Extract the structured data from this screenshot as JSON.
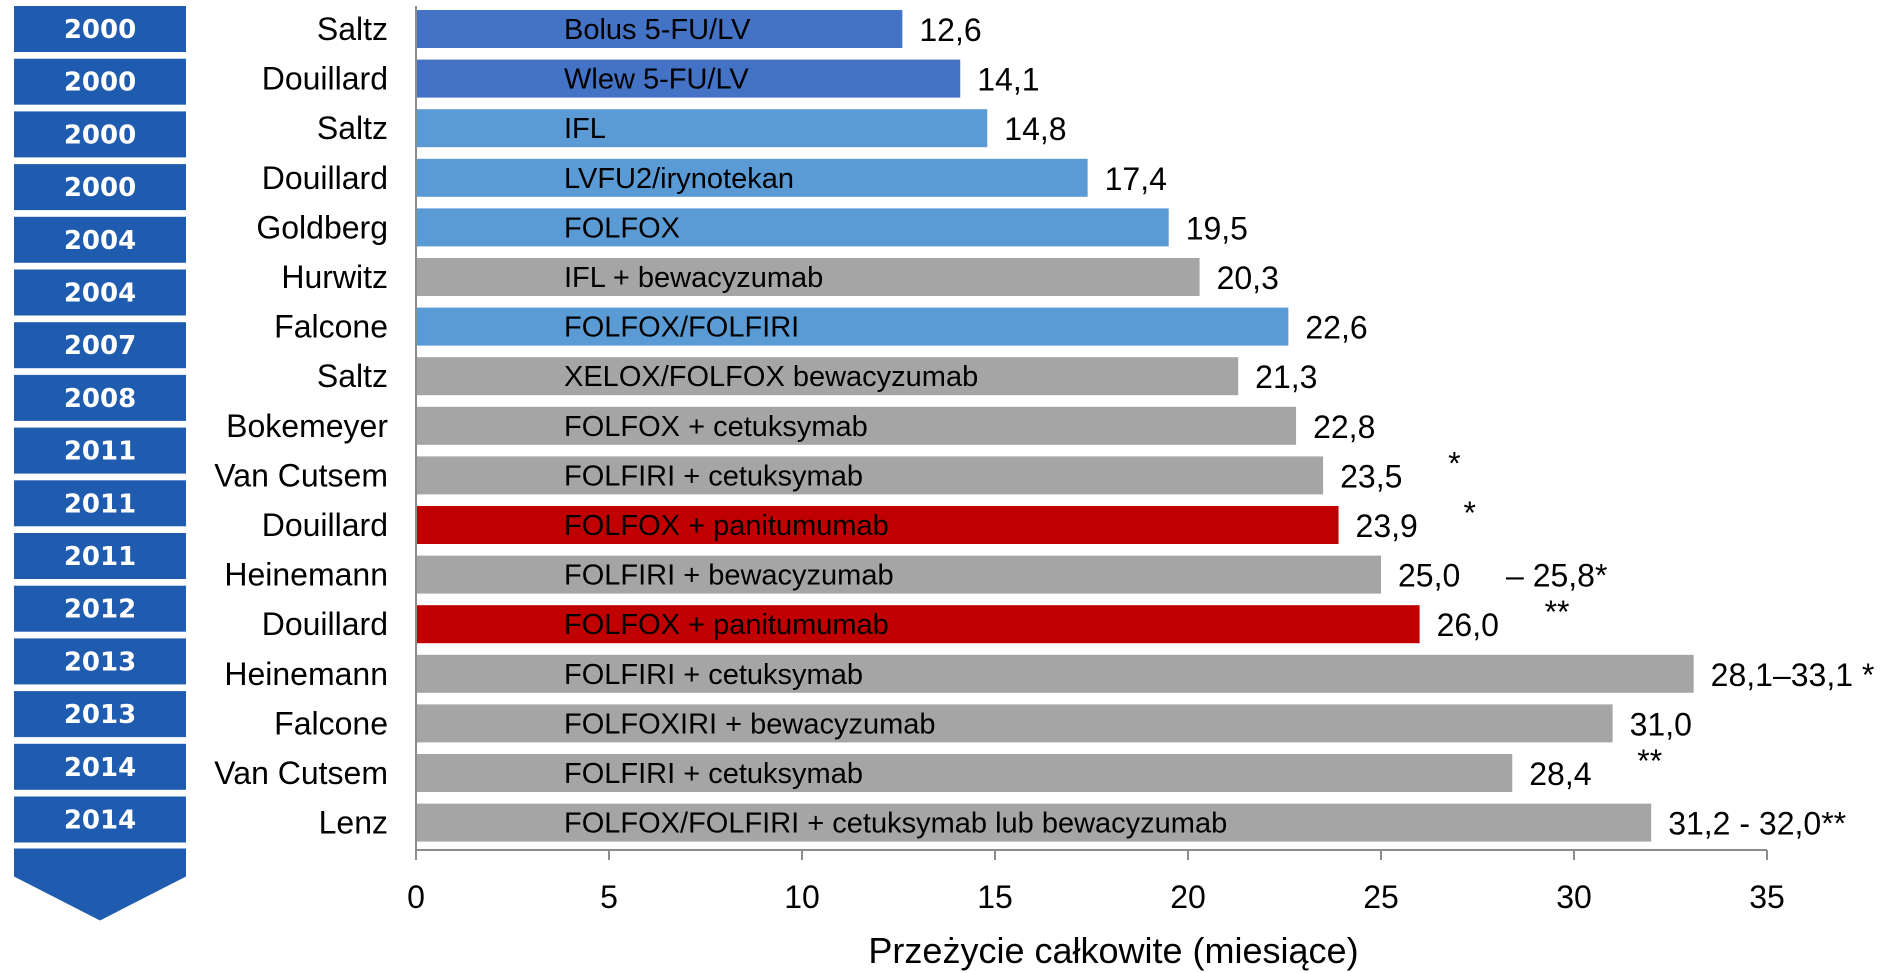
{
  "chart_data": {
    "type": "bar",
    "orientation": "horizontal",
    "xlabel": "Przeżycie całkowite (miesiące)",
    "xlim": [
      0,
      35
    ],
    "xticks": [
      "0",
      "5",
      "10",
      "15",
      "20",
      "25",
      "30",
      "35"
    ],
    "grid": false,
    "colors": {
      "dark_blue": "#4472C4",
      "light_blue": "#5B9BD5",
      "gray": "#A5A5A5",
      "red": "#C00000",
      "timeline": "#1F5CAF"
    },
    "rows": [
      {
        "year": "2000",
        "author": "Saltz",
        "regimen": "Bolus 5-FU/LV",
        "value": 12.6,
        "value_label": "12,6",
        "note": "",
        "color": "dark_blue"
      },
      {
        "year": "2000",
        "author": "Douillard",
        "regimen": "Wlew 5-FU/LV",
        "value": 14.1,
        "value_label": "14,1",
        "note": "",
        "color": "dark_blue"
      },
      {
        "year": "2000",
        "author": "Saltz",
        "regimen": "IFL",
        "value": 14.8,
        "value_label": "14,8",
        "note": "",
        "color": "light_blue"
      },
      {
        "year": "2000",
        "author": "Douillard",
        "regimen": "LVFU2/irynotekan",
        "value": 17.4,
        "value_label": "17,4",
        "note": "",
        "color": "light_blue"
      },
      {
        "year": "2004",
        "author": "Goldberg",
        "regimen": "FOLFOX",
        "value": 19.5,
        "value_label": "19,5",
        "note": "",
        "color": "light_blue"
      },
      {
        "year": "2004",
        "author": "Hurwitz",
        "regimen": "IFL + bewacyzumab",
        "value": 20.3,
        "value_label": "20,3",
        "note": "",
        "color": "gray"
      },
      {
        "year": "2007",
        "author": "Falcone",
        "regimen": "FOLFOX/FOLFIRI",
        "value": 22.6,
        "value_label": "22,6",
        "note": "",
        "color": "light_blue"
      },
      {
        "year": "2008",
        "author": "Saltz",
        "regimen": "XELOX/FOLFOX bewacyzumab",
        "value": 21.3,
        "value_label": "21,3",
        "note": "",
        "color": "gray"
      },
      {
        "year": "2011",
        "author": "Bokemeyer",
        "regimen": "FOLFOX + cetuksymab",
        "value": 22.8,
        "value_label": "22,8",
        "note": "",
        "color": "gray"
      },
      {
        "year": "2011",
        "author": "Van Cutsem",
        "regimen": "FOLFIRI + cetuksymab",
        "value": 23.5,
        "value_label": "23,5",
        "note": "*",
        "color": "gray"
      },
      {
        "year": "2011",
        "author": "Douillard",
        "regimen": "FOLFOX + panitumumab",
        "value": 23.9,
        "value_label": "23,9",
        "note": "*",
        "color": "red"
      },
      {
        "year": "2012",
        "author": "Heinemann",
        "regimen": "FOLFIRI + bewacyzumab",
        "value": 25.0,
        "value_label": "25,0",
        "note": "– 25,8*",
        "color": "gray"
      },
      {
        "year": "2013",
        "author": "Douillard",
        "regimen": "FOLFOX + panitumumab",
        "value": 26.0,
        "value_label": "26,0",
        "note": "**",
        "color": "red"
      },
      {
        "year": "2013",
        "author": "Heinemann",
        "regimen": "FOLFIRI + cetuksymab",
        "value": 33.1,
        "value_label": "28,1–33,1 *",
        "note": "",
        "color": "gray"
      },
      {
        "year": "2014",
        "author": "Falcone",
        "regimen": "FOLFOXIRI + bewacyzumab",
        "value": 31.0,
        "value_label": "31,0",
        "note": "",
        "color": "gray"
      },
      {
        "year": "2014",
        "author": "Van Cutsem",
        "regimen": "FOLFIRI + cetuksymab",
        "value": 28.4,
        "value_label": "28,4",
        "note": "**",
        "color": "gray"
      },
      {
        "year": "",
        "author": "Lenz",
        "regimen": "FOLFOX/FOLFIRI + cetuksymab lub bewacyzumab",
        "value": 32.0,
        "value_label": "31,2 - 32,0**",
        "note": "",
        "color": "gray"
      }
    ]
  }
}
